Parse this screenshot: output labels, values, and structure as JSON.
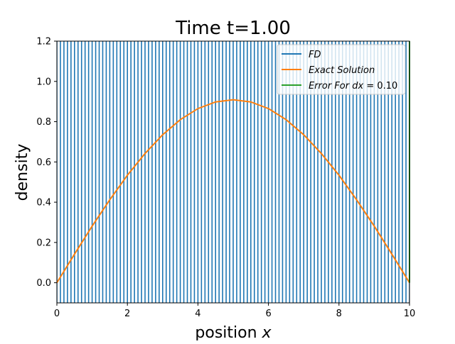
{
  "chart_data": {
    "type": "line",
    "title": "Time t=1.00",
    "xlabel_prefix": "position ",
    "xlabel_var": "x",
    "ylabel": "density",
    "xlim": [
      0,
      10
    ],
    "ylim": [
      -0.1,
      1.2
    ],
    "xticks": [
      0,
      2,
      4,
      6,
      8,
      10
    ],
    "xtick_labels": [
      "0",
      "2",
      "4",
      "6",
      "8",
      "10"
    ],
    "yticks": [
      0.0,
      0.2,
      0.4,
      0.6,
      0.8,
      1.0,
      1.2
    ],
    "ytick_labels": [
      "0.0",
      "0.2",
      "0.4",
      "0.6",
      "0.8",
      "1.0",
      "1.2"
    ],
    "grid": false,
    "legend_position": "top-right",
    "series": [
      {
        "name": "FD",
        "legend_label": "FD",
        "color": "#1f77b4",
        "description_kind": "oscillating vertical lines spanning full y-range",
        "x_start": 0.0,
        "x_end": 10.0,
        "dx": 0.1,
        "y_low": -0.1,
        "y_high": 1.2
      },
      {
        "name": "Exact Solution",
        "legend_label": "Exact Solution",
        "color": "#ff7f0e",
        "x": [
          0,
          0.5,
          1,
          1.5,
          2,
          2.5,
          3,
          3.5,
          4,
          4.5,
          5,
          5.5,
          6,
          6.5,
          7,
          7.5,
          8,
          8.5,
          9,
          9.5,
          10
        ],
        "y": [
          0.0,
          0.142,
          0.281,
          0.412,
          0.534,
          0.642,
          0.735,
          0.81,
          0.865,
          0.898,
          0.909,
          0.898,
          0.865,
          0.81,
          0.735,
          0.642,
          0.534,
          0.412,
          0.281,
          0.142,
          0.0
        ]
      },
      {
        "name": "Error For dx = 0.10",
        "legend_label_text": "Error For dx",
        "legend_label_value": " = 0.10",
        "color": "#2ca02c",
        "x": [
          10,
          10
        ],
        "y": [
          0.0,
          1.2
        ]
      }
    ]
  }
}
